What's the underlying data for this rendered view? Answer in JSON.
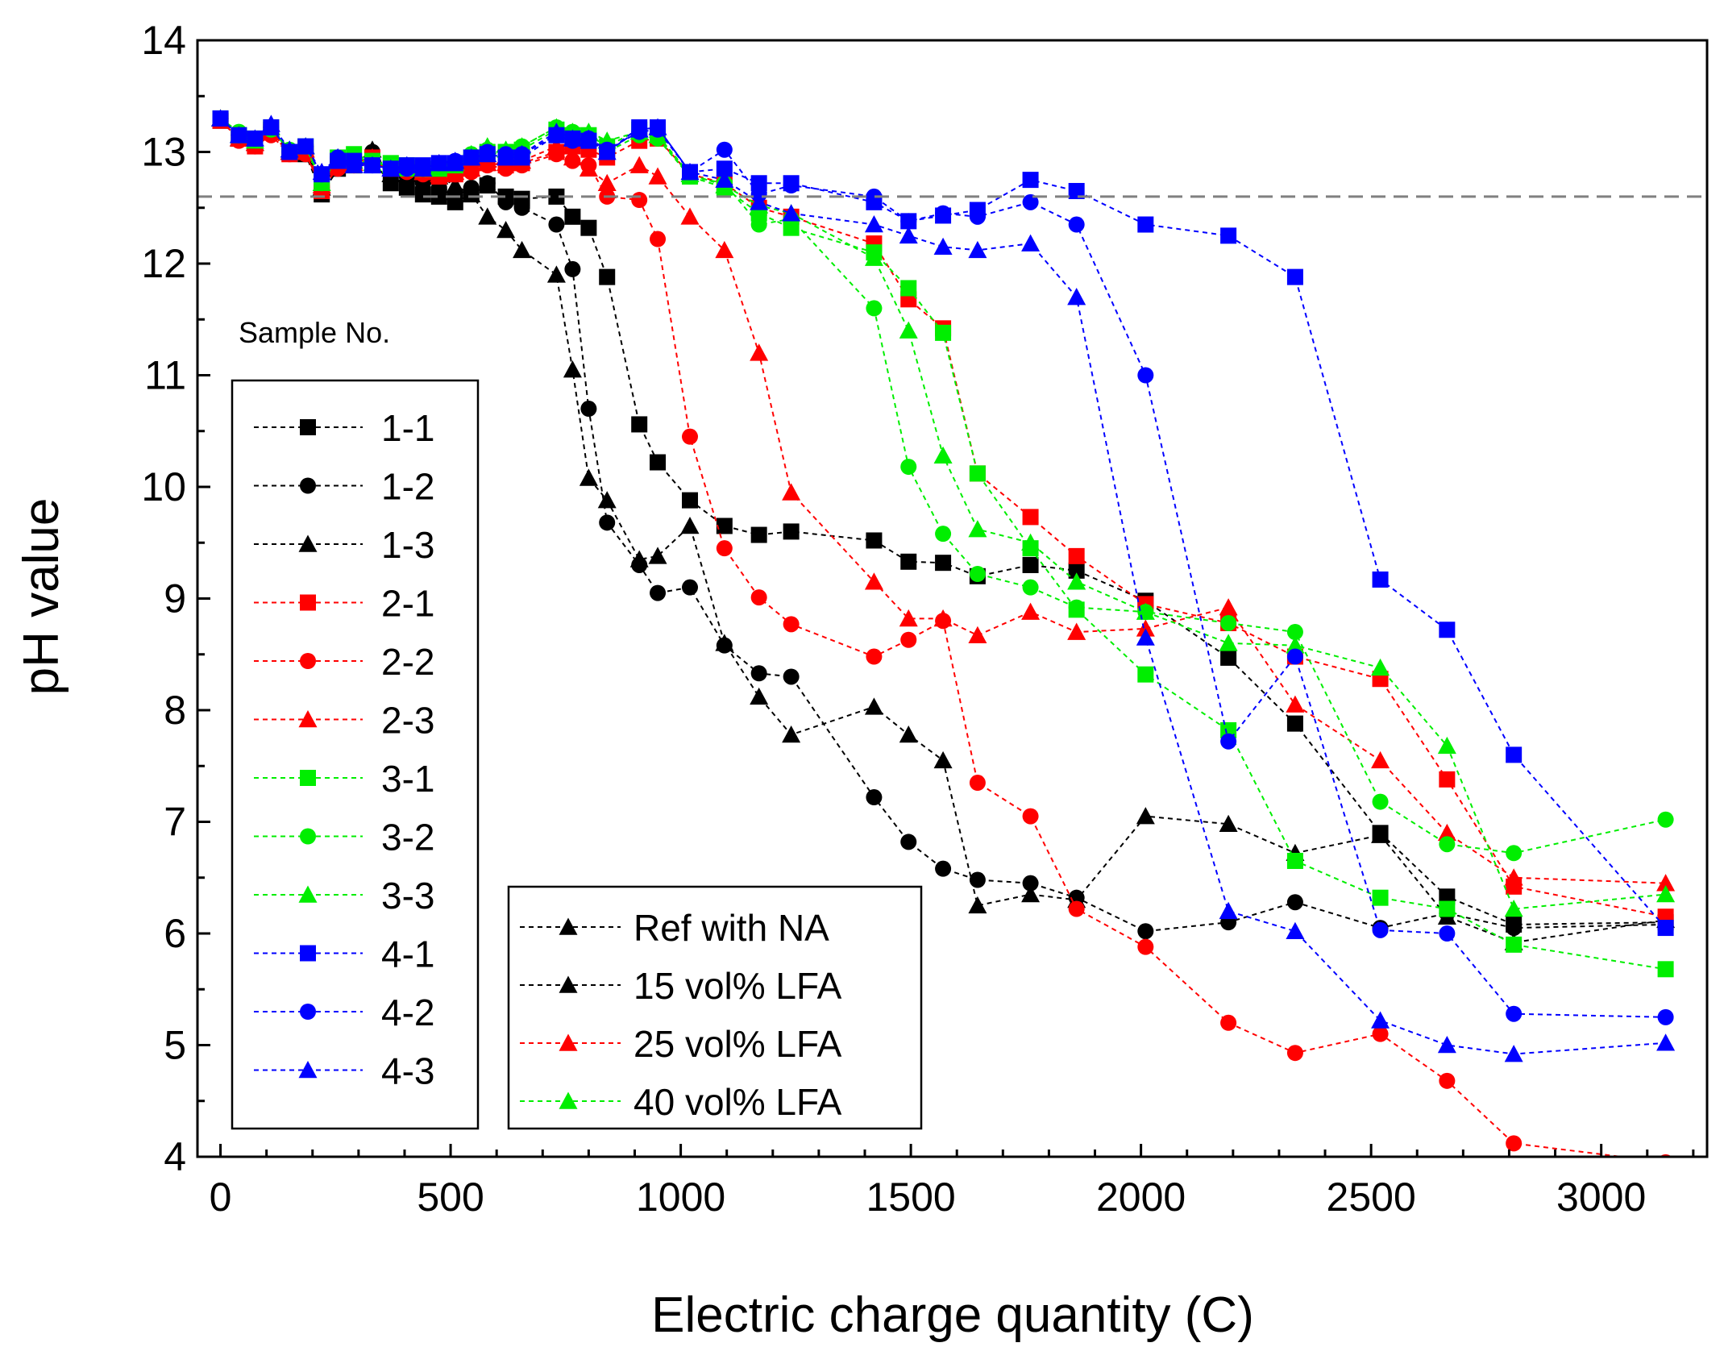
{
  "chart_data": {
    "type": "line",
    "title": "",
    "xlabel": "Electric charge quantity (C)",
    "ylabel": "pH value",
    "xlim": [
      -50,
      3230
    ],
    "ylim": [
      4,
      14
    ],
    "xticks": [
      0,
      500,
      1000,
      1500,
      2000,
      2500,
      3000
    ],
    "yticks": [
      4,
      5,
      6,
      7,
      8,
      9,
      10,
      11,
      12,
      13,
      14
    ],
    "grid": false,
    "reference_line": {
      "y": 12.6,
      "color": "#808080",
      "style": "dashed"
    },
    "legend_sample_title": "Sample No.",
    "legend_group": [
      {
        "label": "Ref with  NA",
        "color": "#000000",
        "marker": "triangle"
      },
      {
        "label": "15 vol% LFA",
        "color": "#000000",
        "marker": "triangle"
      },
      {
        "label": "25 vol% LFA",
        "color": "#ff0000",
        "marker": "triangle"
      },
      {
        "label": "40 vol% LFA",
        "color": "#00ee00",
        "marker": "triangle"
      }
    ],
    "series": [
      {
        "name": "1-1",
        "color": "#000000",
        "marker": "square",
        "x": [
          0,
          40,
          75,
          110,
          150,
          185,
          220,
          255,
          290,
          330,
          370,
          405,
          440,
          475,
          510,
          545,
          580,
          620,
          655,
          730,
          765,
          800,
          840,
          910,
          950,
          1020,
          1095,
          1170,
          1240,
          1420,
          1495,
          1570,
          1645,
          1760,
          1860,
          2010,
          2190,
          2335,
          2520,
          2665,
          2810,
          3140
        ],
        "y": [
          13.28,
          13.12,
          13.08,
          13.2,
          13.0,
          12.98,
          12.62,
          12.85,
          12.88,
          12.92,
          12.72,
          12.68,
          12.62,
          12.6,
          12.55,
          12.62,
          12.7,
          12.6,
          12.58,
          12.6,
          12.42,
          12.32,
          11.88,
          10.56,
          10.22,
          9.88,
          9.65,
          9.57,
          9.6,
          9.52,
          9.33,
          9.32,
          9.2,
          9.3,
          9.25,
          8.98,
          8.47,
          7.88,
          6.9,
          6.33,
          6.08,
          6.1
        ]
      },
      {
        "name": "1-2",
        "color": "#000000",
        "marker": "circle",
        "x": [
          0,
          40,
          75,
          110,
          150,
          185,
          220,
          255,
          290,
          330,
          370,
          405,
          440,
          475,
          510,
          545,
          580,
          620,
          655,
          730,
          765,
          800,
          840,
          910,
          950,
          1020,
          1095,
          1170,
          1240,
          1420,
          1495,
          1570,
          1645,
          1760,
          1860,
          2010,
          2190,
          2335,
          2520,
          2665,
          2810,
          3140
        ],
        "y": [
          13.3,
          13.15,
          13.1,
          13.22,
          13.0,
          13.02,
          12.7,
          12.88,
          12.95,
          13.0,
          12.8,
          12.78,
          12.72,
          12.68,
          12.62,
          12.68,
          12.72,
          12.55,
          12.5,
          12.35,
          11.95,
          10.7,
          9.68,
          9.3,
          9.05,
          9.1,
          8.58,
          8.33,
          8.3,
          7.22,
          6.82,
          6.58,
          6.48,
          6.45,
          6.32,
          6.02,
          6.1,
          6.28,
          6.05,
          6.18,
          6.05,
          6.08
        ]
      },
      {
        "name": "1-3",
        "color": "#000000",
        "marker": "triangle",
        "x": [
          0,
          40,
          75,
          110,
          150,
          185,
          220,
          255,
          290,
          330,
          370,
          405,
          440,
          475,
          510,
          545,
          580,
          620,
          655,
          730,
          765,
          800,
          840,
          910,
          950,
          1020,
          1095,
          1170,
          1240,
          1420,
          1495,
          1570,
          1645,
          1760,
          1860,
          2010,
          2190,
          2335,
          2520,
          2665,
          2810,
          3140
        ],
        "y": [
          13.3,
          13.12,
          13.08,
          13.18,
          13.0,
          13.0,
          12.68,
          12.9,
          12.95,
          13.02,
          12.8,
          12.85,
          12.8,
          12.78,
          12.7,
          12.62,
          12.42,
          12.3,
          12.12,
          11.9,
          11.05,
          10.08,
          9.88,
          9.35,
          9.38,
          9.65,
          8.6,
          8.12,
          7.78,
          8.03,
          7.78,
          7.55,
          6.25,
          6.35,
          6.3,
          7.05,
          6.98,
          6.72,
          6.88,
          6.15,
          5.92,
          6.12
        ]
      },
      {
        "name": "2-1",
        "color": "#ff0000",
        "marker": "square",
        "x": [
          0,
          40,
          75,
          110,
          150,
          185,
          220,
          255,
          290,
          330,
          370,
          405,
          440,
          475,
          510,
          545,
          580,
          620,
          655,
          730,
          765,
          800,
          840,
          910,
          950,
          1020,
          1095,
          1170,
          1240,
          1420,
          1495,
          1570,
          1645,
          1760,
          1860,
          2010,
          2190,
          2335,
          2520,
          2665,
          2810,
          3140
        ],
        "y": [
          13.28,
          13.12,
          13.05,
          13.18,
          12.98,
          13.0,
          12.65,
          12.88,
          12.9,
          12.95,
          12.85,
          12.85,
          12.82,
          12.78,
          12.8,
          12.85,
          12.9,
          12.88,
          12.9,
          13.0,
          13.05,
          13.02,
          12.95,
          13.1,
          13.12,
          12.8,
          12.72,
          12.5,
          12.42,
          12.18,
          11.68,
          11.42,
          10.12,
          9.73,
          9.38,
          8.95,
          8.78,
          8.48,
          8.28,
          7.38,
          6.42,
          6.15
        ]
      },
      {
        "name": "2-2",
        "color": "#ff0000",
        "marker": "circle",
        "x": [
          0,
          40,
          75,
          110,
          150,
          185,
          220,
          255,
          290,
          330,
          370,
          405,
          440,
          475,
          510,
          545,
          580,
          620,
          655,
          730,
          765,
          800,
          840,
          910,
          950,
          1020,
          1095,
          1170,
          1240,
          1420,
          1495,
          1570,
          1645,
          1760,
          1860,
          2010,
          2190,
          2335,
          2520,
          2665,
          2810,
          3140
        ],
        "y": [
          13.3,
          13.1,
          13.05,
          13.15,
          12.98,
          12.98,
          12.68,
          12.85,
          12.88,
          12.9,
          12.85,
          12.82,
          12.8,
          12.78,
          12.8,
          12.82,
          12.88,
          12.85,
          12.88,
          12.98,
          12.92,
          12.88,
          12.6,
          12.57,
          12.22,
          10.45,
          9.45,
          9.01,
          8.77,
          8.48,
          8.63,
          8.8,
          7.35,
          7.05,
          6.22,
          5.88,
          5.2,
          4.93,
          5.1,
          4.68,
          4.12,
          3.95
        ]
      },
      {
        "name": "2-3",
        "color": "#ff0000",
        "marker": "triangle",
        "x": [
          0,
          40,
          75,
          110,
          150,
          185,
          220,
          255,
          290,
          330,
          370,
          405,
          440,
          475,
          510,
          545,
          580,
          620,
          655,
          730,
          765,
          800,
          840,
          910,
          950,
          1020,
          1095,
          1170,
          1240,
          1420,
          1495,
          1570,
          1645,
          1760,
          1860,
          2010,
          2190,
          2335,
          2520,
          2665,
          2810,
          3140
        ],
        "y": [
          13.3,
          13.12,
          13.08,
          13.18,
          13.0,
          13.02,
          12.7,
          12.88,
          12.9,
          12.95,
          12.85,
          12.85,
          12.82,
          12.8,
          12.82,
          12.85,
          12.9,
          12.9,
          12.92,
          13.05,
          12.95,
          12.85,
          12.72,
          12.88,
          12.78,
          12.42,
          12.12,
          11.2,
          9.95,
          9.15,
          8.82,
          8.82,
          8.67,
          8.88,
          8.7,
          8.73,
          8.92,
          8.05,
          7.55,
          6.9,
          6.5,
          6.45
        ]
      },
      {
        "name": "3-1",
        "color": "#00ee00",
        "marker": "square",
        "x": [
          0,
          40,
          75,
          110,
          150,
          185,
          220,
          255,
          290,
          330,
          370,
          405,
          440,
          475,
          510,
          545,
          580,
          620,
          655,
          730,
          765,
          800,
          840,
          910,
          950,
          1020,
          1095,
          1170,
          1240,
          1420,
          1495,
          1570,
          1645,
          1760,
          1860,
          2010,
          2190,
          2335,
          2520,
          2665,
          2810,
          3140
        ],
        "y": [
          13.3,
          13.15,
          13.12,
          13.22,
          13.0,
          13.05,
          12.75,
          12.95,
          12.98,
          12.92,
          12.9,
          12.88,
          12.85,
          12.85,
          12.88,
          12.95,
          13.0,
          13.0,
          13.02,
          13.2,
          13.15,
          13.15,
          13.05,
          13.2,
          13.15,
          12.78,
          12.68,
          12.45,
          12.32,
          12.1,
          11.78,
          11.38,
          10.12,
          9.45,
          8.9,
          8.32,
          7.82,
          6.65,
          6.32,
          6.22,
          5.9,
          5.68
        ]
      },
      {
        "name": "3-2",
        "color": "#00ee00",
        "marker": "circle",
        "x": [
          0,
          40,
          75,
          110,
          150,
          185,
          220,
          255,
          290,
          330,
          370,
          405,
          440,
          475,
          510,
          545,
          580,
          620,
          655,
          730,
          765,
          800,
          840,
          910,
          950,
          1020,
          1095,
          1170,
          1240,
          1420,
          1495,
          1570,
          1645,
          1760,
          1860,
          2010,
          2190,
          2335,
          2520,
          2665,
          2810,
          3140
        ],
        "y": [
          13.3,
          13.18,
          13.12,
          13.2,
          13.02,
          13.05,
          12.72,
          12.95,
          12.95,
          12.92,
          12.88,
          12.85,
          12.85,
          12.88,
          12.9,
          12.98,
          13.02,
          13.0,
          13.05,
          13.22,
          13.18,
          13.12,
          13.0,
          13.15,
          13.12,
          12.78,
          12.72,
          12.35,
          12.4,
          11.6,
          10.18,
          9.58,
          9.22,
          9.1,
          8.92,
          8.88,
          8.78,
          8.7,
          7.18,
          6.8,
          6.72,
          7.02
        ]
      },
      {
        "name": "3-3",
        "color": "#00ee00",
        "marker": "triangle",
        "x": [
          0,
          40,
          75,
          110,
          150,
          185,
          220,
          255,
          290,
          330,
          370,
          405,
          440,
          475,
          510,
          545,
          580,
          620,
          655,
          730,
          765,
          800,
          840,
          910,
          950,
          1020,
          1095,
          1170,
          1240,
          1420,
          1495,
          1570,
          1645,
          1760,
          1860,
          2010,
          2190,
          2335,
          2520,
          2665,
          2810,
          3140
        ],
        "y": [
          13.3,
          13.15,
          13.1,
          13.22,
          13.02,
          13.05,
          12.72,
          12.95,
          12.92,
          12.9,
          12.88,
          12.85,
          12.85,
          12.88,
          12.9,
          12.98,
          13.05,
          13.02,
          13.05,
          13.22,
          13.18,
          13.18,
          13.1,
          13.18,
          13.15,
          12.8,
          12.7,
          12.52,
          12.45,
          12.05,
          11.4,
          10.28,
          9.62,
          9.5,
          9.15,
          8.88,
          8.6,
          8.58,
          8.38,
          7.68,
          6.22,
          6.35
        ]
      },
      {
        "name": "4-1",
        "color": "#0000ff",
        "marker": "square",
        "x": [
          0,
          40,
          75,
          110,
          150,
          185,
          220,
          255,
          290,
          330,
          370,
          405,
          440,
          475,
          510,
          545,
          580,
          620,
          655,
          730,
          765,
          800,
          840,
          910,
          950,
          1020,
          1095,
          1170,
          1240,
          1420,
          1495,
          1570,
          1645,
          1760,
          1860,
          2010,
          2190,
          2335,
          2520,
          2665,
          2810,
          3140
        ],
        "y": [
          13.3,
          13.15,
          13.12,
          13.22,
          13.0,
          13.05,
          12.8,
          12.92,
          12.92,
          12.88,
          12.85,
          12.88,
          12.88,
          12.9,
          12.9,
          12.95,
          12.98,
          12.95,
          12.95,
          13.15,
          13.12,
          13.1,
          13.0,
          13.22,
          13.22,
          12.82,
          12.85,
          12.72,
          12.72,
          12.55,
          12.38,
          12.43,
          12.48,
          12.75,
          12.65,
          12.35,
          12.25,
          11.88,
          9.17,
          8.72,
          7.6,
          6.05
        ]
      },
      {
        "name": "4-2",
        "color": "#0000ff",
        "marker": "circle",
        "x": [
          0,
          40,
          75,
          110,
          150,
          185,
          220,
          255,
          290,
          330,
          370,
          405,
          440,
          475,
          510,
          545,
          580,
          620,
          655,
          730,
          765,
          800,
          840,
          910,
          950,
          1020,
          1095,
          1170,
          1240,
          1420,
          1495,
          1570,
          1645,
          1760,
          1860,
          2010,
          2190,
          2335,
          2520,
          2665,
          2810,
          3140
        ],
        "y": [
          13.3,
          13.15,
          13.12,
          13.22,
          13.0,
          13.05,
          12.8,
          12.95,
          12.9,
          12.88,
          12.85,
          12.85,
          12.85,
          12.9,
          12.92,
          12.95,
          13.0,
          12.98,
          12.98,
          13.15,
          13.1,
          13.12,
          13.02,
          13.18,
          13.2,
          12.82,
          13.02,
          12.62,
          12.7,
          12.6,
          12.38,
          12.45,
          12.42,
          12.55,
          12.35,
          11.0,
          7.72,
          8.48,
          6.03,
          6.0,
          5.28,
          5.25
        ]
      },
      {
        "name": "4-3",
        "color": "#0000ff",
        "marker": "triangle",
        "x": [
          0,
          40,
          75,
          110,
          150,
          185,
          220,
          255,
          290,
          330,
          370,
          405,
          440,
          475,
          510,
          545,
          580,
          620,
          655,
          730,
          765,
          800,
          840,
          910,
          950,
          1020,
          1095,
          1170,
          1240,
          1420,
          1495,
          1570,
          1645,
          1760,
          1860,
          2010,
          2190,
          2335,
          2520,
          2665,
          2810,
          3140
        ],
        "y": [
          13.3,
          13.15,
          13.12,
          13.25,
          13.02,
          13.05,
          12.82,
          12.95,
          12.88,
          12.88,
          12.85,
          12.88,
          12.85,
          12.9,
          12.92,
          12.95,
          12.98,
          12.95,
          12.98,
          13.18,
          13.12,
          13.12,
          13.0,
          13.2,
          13.22,
          12.82,
          12.75,
          12.55,
          12.45,
          12.35,
          12.25,
          12.15,
          12.12,
          12.18,
          11.7,
          8.65,
          6.2,
          6.02,
          5.22,
          5.0,
          4.92,
          5.02
        ]
      }
    ]
  }
}
